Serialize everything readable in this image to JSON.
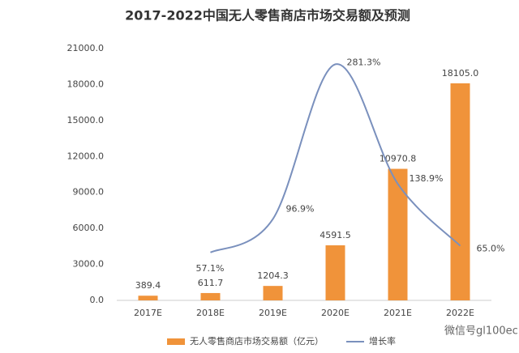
{
  "chart_data": {
    "type": "bar_line",
    "title": "2017-2022中国无人零售商店市场交易额及预测",
    "categories": [
      "2017E",
      "2018E",
      "2019E",
      "2020E",
      "2021E",
      "2022E"
    ],
    "series": [
      {
        "name": "无人零售商店市场交易额（亿元）",
        "color": "#f0933a",
        "type": "bar",
        "values": [
          389.4,
          611.7,
          1204.3,
          4591.5,
          10970.8,
          18105
        ],
        "value_labels": [
          "389.4",
          "611.7",
          "1204.3",
          "4591.5",
          "10970.8",
          "18105.0"
        ]
      },
      {
        "name": "增长率",
        "color": "#7a90bd",
        "type": "line",
        "axis": "y2",
        "smooth": true,
        "values": [
          null,
          57.1,
          96.9,
          281.3,
          138.9,
          65.0
        ],
        "value_labels": [
          null,
          "57.1%",
          "96.9%",
          "281.3%",
          "138.9%",
          "65.0%"
        ]
      }
    ],
    "ylim": [
      0,
      21000
    ],
    "yticks": [
      {
        "value": 0,
        "label": "0.0"
      },
      {
        "value": 3000,
        "label": "3000.0"
      },
      {
        "value": 6000,
        "label": "6000.0"
      },
      {
        "value": 9000,
        "label": "9000.0"
      },
      {
        "value": 12000,
        "label": "12000.0"
      },
      {
        "value": 15000,
        "label": "15000.0"
      },
      {
        "value": 18000,
        "label": "18000.0"
      },
      {
        "value": 21000,
        "label": "21000.0"
      }
    ],
    "y2lim": [
      0,
      300
    ],
    "grid": false,
    "legend": "bottom",
    "watermark": "微信号gl100ec"
  }
}
